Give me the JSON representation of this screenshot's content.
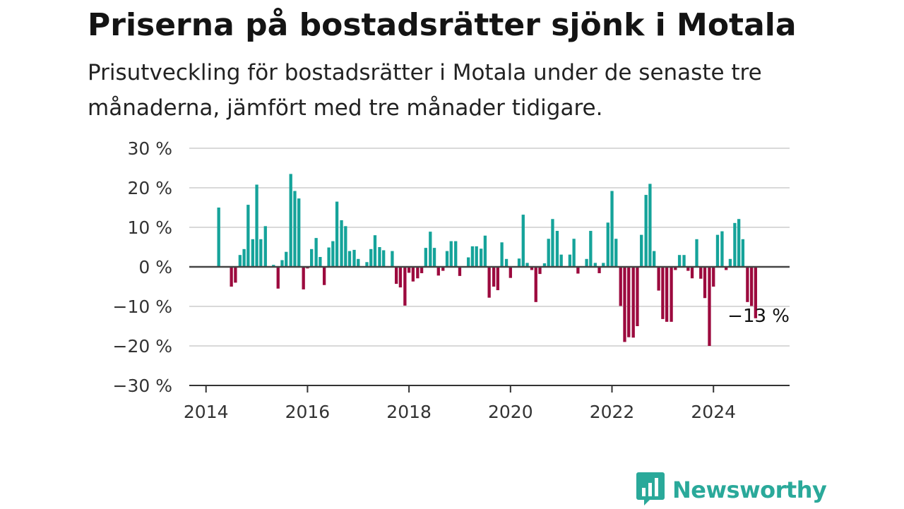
{
  "header": {
    "title": "Priserna på bostadsrätter sjönk i Motala",
    "subtitle": "Prisutveckling för bostadsrätter i Motala under de senaste tre månaderna, jämfört med tre månader tidigare."
  },
  "brand": {
    "name": "Newsworthy",
    "icon": "newsworthy-chat-bars-icon",
    "color": "#2aa99a"
  },
  "chart_data": {
    "type": "bar",
    "y_ticks": [
      30,
      20,
      10,
      0,
      -10,
      -20,
      -30
    ],
    "y_tick_labels": [
      "30 %",
      "20 %",
      "10 %",
      "0 %",
      "−10 %",
      "−20 %",
      "−30 %"
    ],
    "x_ticks": [
      2014,
      2016,
      2018,
      2020,
      2022,
      2024
    ],
    "x_tick_labels": [
      "2014",
      "2016",
      "2018",
      "2020",
      "2022",
      "2024"
    ],
    "ylim": [
      -30,
      30
    ],
    "xlim": [
      2013.67,
      2025.5
    ],
    "grid": true,
    "positive_color": "#15a39a",
    "negative_color": "#9c0a3e",
    "annotation": {
      "text": "−13 %",
      "x": 2024.83,
      "y": -13
    },
    "x": [
      2014.25,
      2014.33,
      2014.42,
      2014.5,
      2014.58,
      2014.67,
      2014.75,
      2014.83,
      2014.92,
      2015.0,
      2015.08,
      2015.17,
      2015.25,
      2015.33,
      2015.42,
      2015.5,
      2015.58,
      2015.67,
      2015.75,
      2015.83,
      2015.92,
      2016.0,
      2016.08,
      2016.17,
      2016.25,
      2016.33,
      2016.42,
      2016.5,
      2016.58,
      2016.67,
      2016.75,
      2016.83,
      2016.92,
      2017.0,
      2017.08,
      2017.17,
      2017.25,
      2017.33,
      2017.42,
      2017.5,
      2017.58,
      2017.67,
      2017.75,
      2017.83,
      2017.92,
      2018.0,
      2018.08,
      2018.17,
      2018.25,
      2018.33,
      2018.42,
      2018.5,
      2018.58,
      2018.67,
      2018.75,
      2018.83,
      2018.92,
      2019.0,
      2019.08,
      2019.17,
      2019.25,
      2019.33,
      2019.42,
      2019.5,
      2019.58,
      2019.67,
      2019.75,
      2019.83,
      2019.92,
      2020.0,
      2020.08,
      2020.17,
      2020.25,
      2020.33,
      2020.42,
      2020.5,
      2020.58,
      2020.67,
      2020.75,
      2020.83,
      2020.92,
      2021.0,
      2021.08,
      2021.17,
      2021.25,
      2021.33,
      2021.42,
      2021.5,
      2021.58,
      2021.67,
      2021.75,
      2021.83,
      2021.92,
      2022.0,
      2022.08,
      2022.17,
      2022.25,
      2022.33,
      2022.42,
      2022.5,
      2022.58,
      2022.67,
      2022.75,
      2022.83,
      2022.92,
      2023.0,
      2023.08,
      2023.17,
      2023.25,
      2023.33,
      2023.42,
      2023.5,
      2023.58,
      2023.67,
      2023.75,
      2023.83,
      2023.92,
      2024.0,
      2024.08,
      2024.17,
      2024.25,
      2024.33,
      2024.42,
      2024.5,
      2024.58,
      2024.67,
      2024.75,
      2024.83
    ],
    "values": [
      15,
      0,
      0,
      -5,
      -4,
      3,
      4.5,
      15.7,
      7,
      20.8,
      7,
      10.3,
      0,
      0.5,
      -5.5,
      1.7,
      3.8,
      23.5,
      19.2,
      17.3,
      -5.7,
      -0.4,
      4.5,
      7.3,
      2.5,
      -4.6,
      4.9,
      6.5,
      16.5,
      11.8,
      10.3,
      4,
      4.3,
      2,
      0,
      1.2,
      4.5,
      8,
      5,
      4.2,
      0,
      4,
      -4.3,
      -5.2,
      -9.8,
      -1.5,
      -3.7,
      -2.9,
      -1.6,
      4.8,
      8.9,
      4.8,
      -2.2,
      -1,
      4,
      6.5,
      6.5,
      -2.3,
      0,
      2.4,
      5.2,
      5.2,
      4.6,
      7.9,
      -7.8,
      -5,
      -5.9,
      6.2,
      2,
      -2.8,
      0,
      2.1,
      13.2,
      1,
      -0.8,
      -8.9,
      -1.8,
      0.9,
      7.1,
      12.1,
      9.1,
      3.1,
      0,
      3.1,
      7.1,
      -1.7,
      0,
      2,
      9.1,
      1,
      -1.6,
      1,
      11.2,
      19.2,
      7.1,
      -9.9,
      -19,
      -17.8,
      -17.9,
      -15,
      8.1,
      18.2,
      21,
      4,
      -6,
      -13.2,
      -13.9,
      -13.9,
      -0.8,
      3,
      3,
      -1,
      -2.9,
      7,
      -3,
      -7.9,
      -20,
      -5,
      8.1,
      9,
      -0.8,
      2,
      11.1,
      12.1,
      7,
      -8.9,
      -9.9,
      -13
    ]
  }
}
